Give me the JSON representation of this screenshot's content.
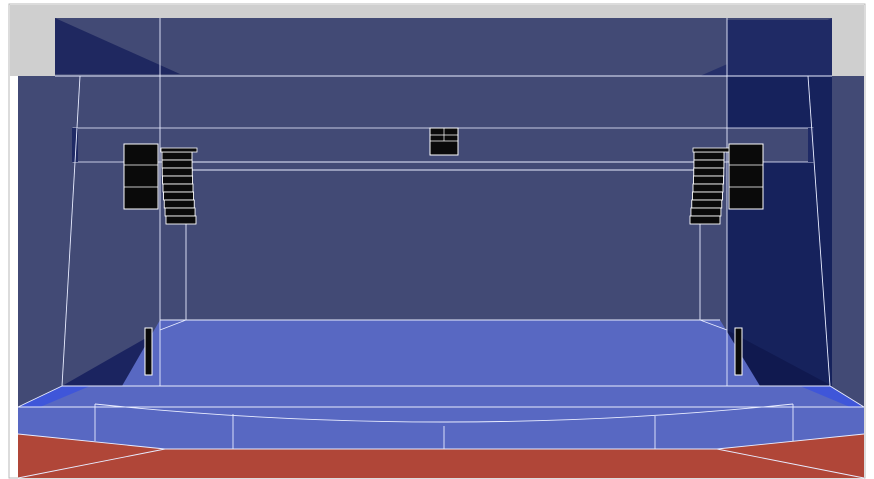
{
  "view": {
    "type": "3d-venue-speaker-layout",
    "colors": {
      "background": "#ffffff",
      "frame_border": "#b9b9b9",
      "ceiling_light": "#cfcfcf",
      "wall_dark": "#424a75",
      "wall_shadow": "#1a2360",
      "stage_floor": "#5868c2",
      "audience_floor": "#b04638",
      "wireframe": "#e8ecff",
      "speaker_body": "#0a0a0a",
      "speaker_outline": "#ffffff"
    }
  },
  "speakers": [
    {
      "name": "left-main-array",
      "kind": "line-array",
      "cabinets": 9
    },
    {
      "name": "left-sub-stack",
      "kind": "subwoofer-stack",
      "cabinets": 3
    },
    {
      "name": "right-main-array",
      "kind": "line-array",
      "cabinets": 9
    },
    {
      "name": "right-sub-stack",
      "kind": "subwoofer-stack",
      "cabinets": 3
    },
    {
      "name": "center-cluster",
      "kind": "center-fill",
      "cabinets": 2
    },
    {
      "name": "left-column-speaker",
      "kind": "column",
      "cabinets": 1
    },
    {
      "name": "right-column-speaker",
      "kind": "column",
      "cabinets": 1
    }
  ]
}
